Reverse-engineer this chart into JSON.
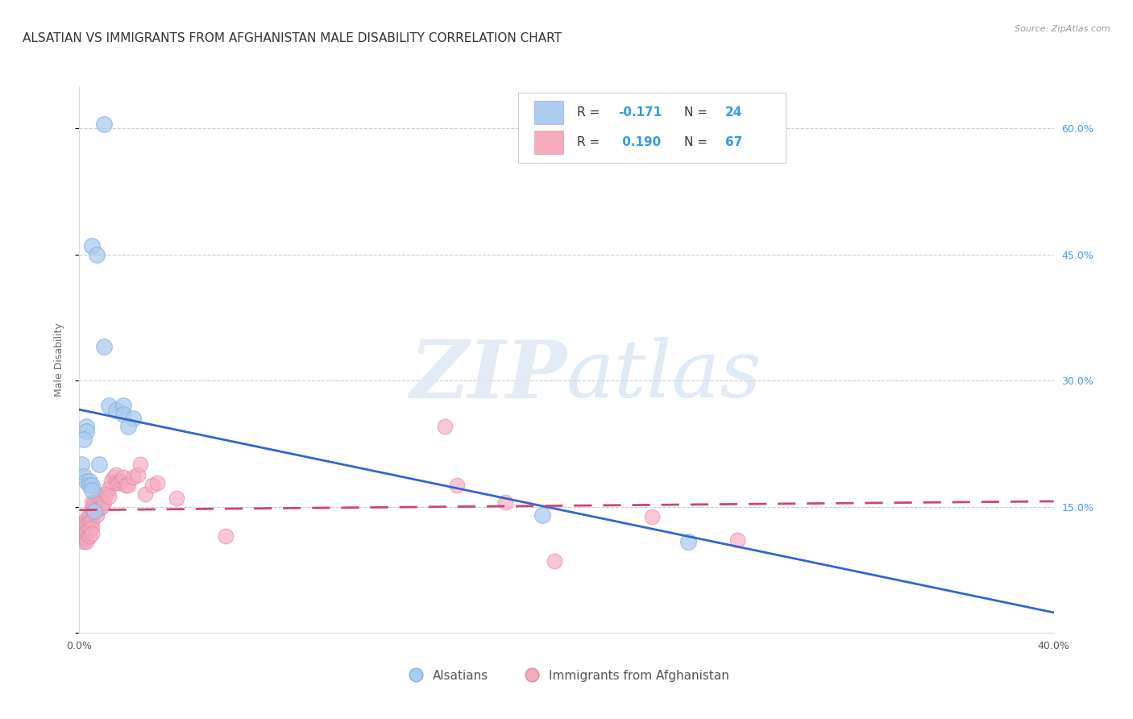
{
  "title": "ALSATIAN VS IMMIGRANTS FROM AFGHANISTAN MALE DISABILITY CORRELATION CHART",
  "source": "Source: ZipAtlas.com",
  "ylabel": "Male Disability",
  "xmin": 0.0,
  "xmax": 0.4,
  "ymin": 0.0,
  "ymax": 0.65,
  "yticks": [
    0.0,
    0.15,
    0.3,
    0.45,
    0.6
  ],
  "right_ytick_labels": [
    "",
    "15.0%",
    "30.0%",
    "45.0%",
    "60.0%"
  ],
  "grid_color": "#cccccc",
  "background_color": "#ffffff",
  "alsatian_color": "#aaccf0",
  "alsatian_edge_color": "#88aadd",
  "alsatian_line_color": "#3366cc",
  "afghanistan_color": "#f5aabc",
  "afghanistan_edge_color": "#dd88aa",
  "afghanistan_line_color": "#cc4477",
  "alsatian_R": -0.171,
  "alsatian_N": 24,
  "afghanistan_R": 0.19,
  "afghanistan_N": 67,
  "alsatian_points_x": [
    0.01,
    0.005,
    0.007,
    0.01,
    0.012,
    0.015,
    0.018,
    0.018,
    0.022,
    0.02,
    0.003,
    0.003,
    0.002,
    0.001,
    0.002,
    0.003,
    0.004,
    0.004,
    0.005,
    0.005,
    0.006,
    0.008,
    0.19,
    0.25
  ],
  "alsatian_points_y": [
    0.605,
    0.46,
    0.45,
    0.34,
    0.27,
    0.265,
    0.27,
    0.26,
    0.255,
    0.245,
    0.245,
    0.24,
    0.23,
    0.2,
    0.186,
    0.18,
    0.18,
    0.175,
    0.175,
    0.17,
    0.145,
    0.2,
    0.14,
    0.108
  ],
  "afghanistan_points_x": [
    0.001,
    0.001,
    0.001,
    0.001,
    0.001,
    0.001,
    0.001,
    0.002,
    0.002,
    0.002,
    0.002,
    0.002,
    0.002,
    0.002,
    0.002,
    0.003,
    0.003,
    0.003,
    0.003,
    0.003,
    0.004,
    0.004,
    0.004,
    0.004,
    0.005,
    0.005,
    0.005,
    0.005,
    0.005,
    0.005,
    0.006,
    0.006,
    0.007,
    0.007,
    0.007,
    0.008,
    0.008,
    0.009,
    0.009,
    0.01,
    0.01,
    0.011,
    0.012,
    0.012,
    0.013,
    0.014,
    0.015,
    0.015,
    0.016,
    0.017,
    0.018,
    0.019,
    0.02,
    0.022,
    0.024,
    0.025,
    0.027,
    0.03,
    0.032,
    0.04,
    0.06,
    0.155,
    0.175,
    0.235,
    0.27,
    0.15,
    0.195
  ],
  "afghanistan_points_y": [
    0.13,
    0.128,
    0.125,
    0.122,
    0.12,
    0.118,
    0.115,
    0.13,
    0.128,
    0.125,
    0.122,
    0.118,
    0.115,
    0.112,
    0.108,
    0.135,
    0.128,
    0.12,
    0.112,
    0.108,
    0.14,
    0.132,
    0.125,
    0.115,
    0.155,
    0.148,
    0.14,
    0.132,
    0.125,
    0.118,
    0.155,
    0.145,
    0.155,
    0.148,
    0.14,
    0.16,
    0.148,
    0.158,
    0.15,
    0.165,
    0.155,
    0.165,
    0.172,
    0.162,
    0.18,
    0.185,
    0.188,
    0.178,
    0.178,
    0.18,
    0.185,
    0.175,
    0.175,
    0.185,
    0.188,
    0.2,
    0.165,
    0.175,
    0.178,
    0.16,
    0.115,
    0.175,
    0.155,
    0.138,
    0.11,
    0.245,
    0.085
  ],
  "legend_label_1": "Alsatians",
  "legend_label_2": "Immigrants from Afghanistan",
  "watermark_zip": "ZIP",
  "watermark_atlas": "atlas",
  "title_fontsize": 11,
  "axis_label_fontsize": 9,
  "tick_fontsize": 9,
  "legend_text_color": "#333333",
  "legend_value_color": "#3399ee"
}
